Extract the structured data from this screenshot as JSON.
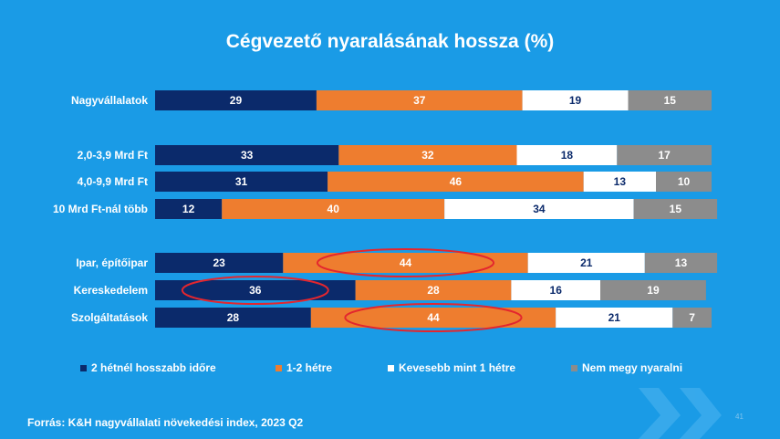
{
  "slide": {
    "title": "Cégvezető nyaralásának hossza (%)",
    "source": "Forrás: K&H nagyvállalati növekedési index, 2023 Q2",
    "page_number": "41"
  },
  "colors": {
    "background": "#1a9be6",
    "series": [
      "#0b2a6b",
      "#ee7d2f",
      "#ffffff",
      "#8c8c8c"
    ],
    "label_dark": "#0b2a6b",
    "label_light": "#ffffff",
    "highlight_ellipse": "#e3262e"
  },
  "chart_data": {
    "type": "bar",
    "orientation": "horizontal",
    "stacked": true,
    "percent_stacked": true,
    "title": "Cégvezető nyaralásának hossza (%)",
    "categories": [
      "Nagyvállalatok",
      "2,0-3,9 Mrd Ft",
      "4,0-9,9 Mrd Ft",
      "10 Mrd Ft-nál több",
      "Ipar, építőipar",
      "Kereskedelem",
      "Szolgáltatások"
    ],
    "groups": [
      [
        0
      ],
      [
        1,
        2,
        3
      ],
      [
        4,
        5,
        6
      ]
    ],
    "series": [
      {
        "name": "2 hétnél hosszabb időre",
        "values": [
          29,
          33,
          31,
          12,
          23,
          36,
          28
        ]
      },
      {
        "name": "1-2 hétre",
        "values": [
          37,
          32,
          46,
          40,
          44,
          28,
          44
        ]
      },
      {
        "name": "Kevesebb mint 1 hétre",
        "values": [
          19,
          18,
          13,
          34,
          21,
          16,
          21
        ]
      },
      {
        "name": "Nem megy nyaralni",
        "values": [
          15,
          17,
          10,
          15,
          13,
          19,
          7
        ]
      }
    ],
    "highlights": [
      {
        "category": "Ipar, építőipar",
        "series": "1-2 hétre"
      },
      {
        "category": "Kereskedelem",
        "series": "2 hétnél hosszabb időre"
      },
      {
        "category": "Szolgáltatások",
        "series": "1-2 hétre"
      }
    ],
    "legend_position": "bottom",
    "xlim": [
      0,
      100
    ],
    "grid": false
  }
}
